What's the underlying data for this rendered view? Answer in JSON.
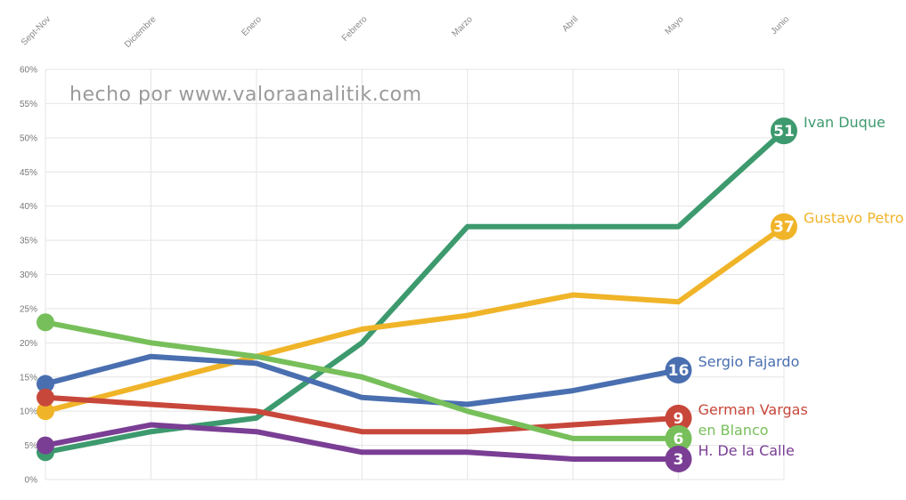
{
  "watermark": "hecho por www.valoraanalitik.com",
  "chart_data": {
    "type": "line",
    "title": "",
    "xlabel": "",
    "ylabel": "",
    "categories": [
      "Sept-Nov",
      "Diciembre",
      "Enero",
      "Febrero",
      "Marzo",
      "Abril",
      "Mayo",
      "Junio"
    ],
    "y_ticks": [
      "0%",
      "5%",
      "10%",
      "15%",
      "20%",
      "25%",
      "30%",
      "35%",
      "40%",
      "45%",
      "50%",
      "55%",
      "60%"
    ],
    "ylim": [
      0,
      60
    ],
    "grid": true,
    "legend": "inline labels at line ends",
    "series": [
      {
        "name": "Ivan Duque",
        "end_label": "51",
        "color": "#3d9a6e",
        "values": [
          4,
          7,
          9,
          20,
          37,
          37,
          37,
          51
        ]
      },
      {
        "name": "Gustavo Petro",
        "end_label": "37",
        "color": "#f0b429",
        "values": [
          10,
          14,
          18,
          22,
          24,
          27,
          26,
          37
        ]
      },
      {
        "name": "Sergio Fajardo",
        "end_label": "16",
        "color": "#4a6fb0",
        "values": [
          14,
          18,
          17,
          12,
          11,
          13,
          16,
          null
        ]
      },
      {
        "name": "German Vargas",
        "end_label": "9",
        "color": "#c8473b",
        "values": [
          12,
          11,
          10,
          7,
          7,
          8,
          9,
          null
        ]
      },
      {
        "name": "en Blanco",
        "end_label": "6",
        "color": "#77bf5a",
        "values": [
          23,
          20,
          18,
          15,
          10,
          6,
          6,
          null
        ]
      },
      {
        "name": "H. De la Calle",
        "end_label": "3",
        "color": "#7a3e94",
        "values": [
          5,
          8,
          7,
          4,
          4,
          3,
          3,
          null
        ]
      }
    ]
  }
}
